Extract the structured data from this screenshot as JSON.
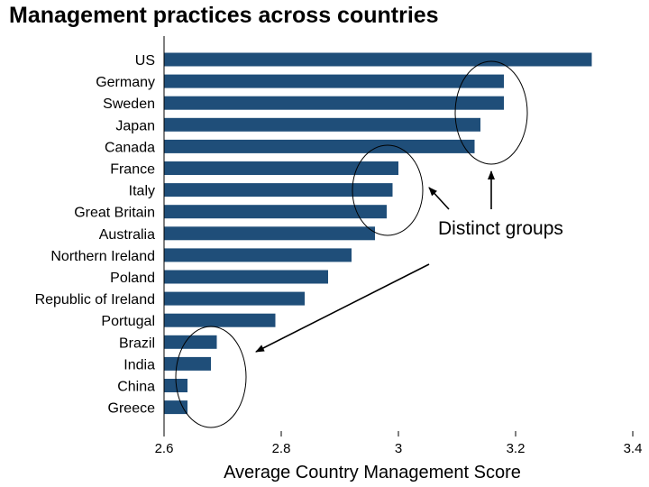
{
  "title": "Management practices across countries",
  "chart_data": {
    "type": "bar",
    "orientation": "horizontal",
    "title": "Management practices across countries",
    "xlabel": "Average Country Management Score",
    "ylabel": "",
    "xlim": [
      2.6,
      3.4
    ],
    "xticks": [
      "2.6",
      "2.8",
      "3",
      "3.2",
      "3.4"
    ],
    "bar_color": "#1f4e79",
    "categories": [
      "US",
      "Germany",
      "Sweden",
      "Japan",
      "Canada",
      "France",
      "Italy",
      "Great Britain",
      "Australia",
      "Northern Ireland",
      "Poland",
      "Republic of Ireland",
      "Portugal",
      "Brazil",
      "India",
      "China",
      "Greece"
    ],
    "values": [
      3.33,
      3.18,
      3.18,
      3.14,
      3.13,
      3.0,
      2.99,
      2.98,
      2.96,
      2.92,
      2.88,
      2.84,
      2.79,
      2.69,
      2.68,
      2.64,
      2.64
    ],
    "annotations": {
      "text": "Distinct groups",
      "groups": [
        [
          "Germany",
          "Sweden",
          "Japan",
          "Canada"
        ],
        [
          "France",
          "Italy",
          "Great Britain",
          "Australia"
        ],
        [
          "Brazil",
          "India",
          "China",
          "Greece"
        ]
      ]
    }
  }
}
